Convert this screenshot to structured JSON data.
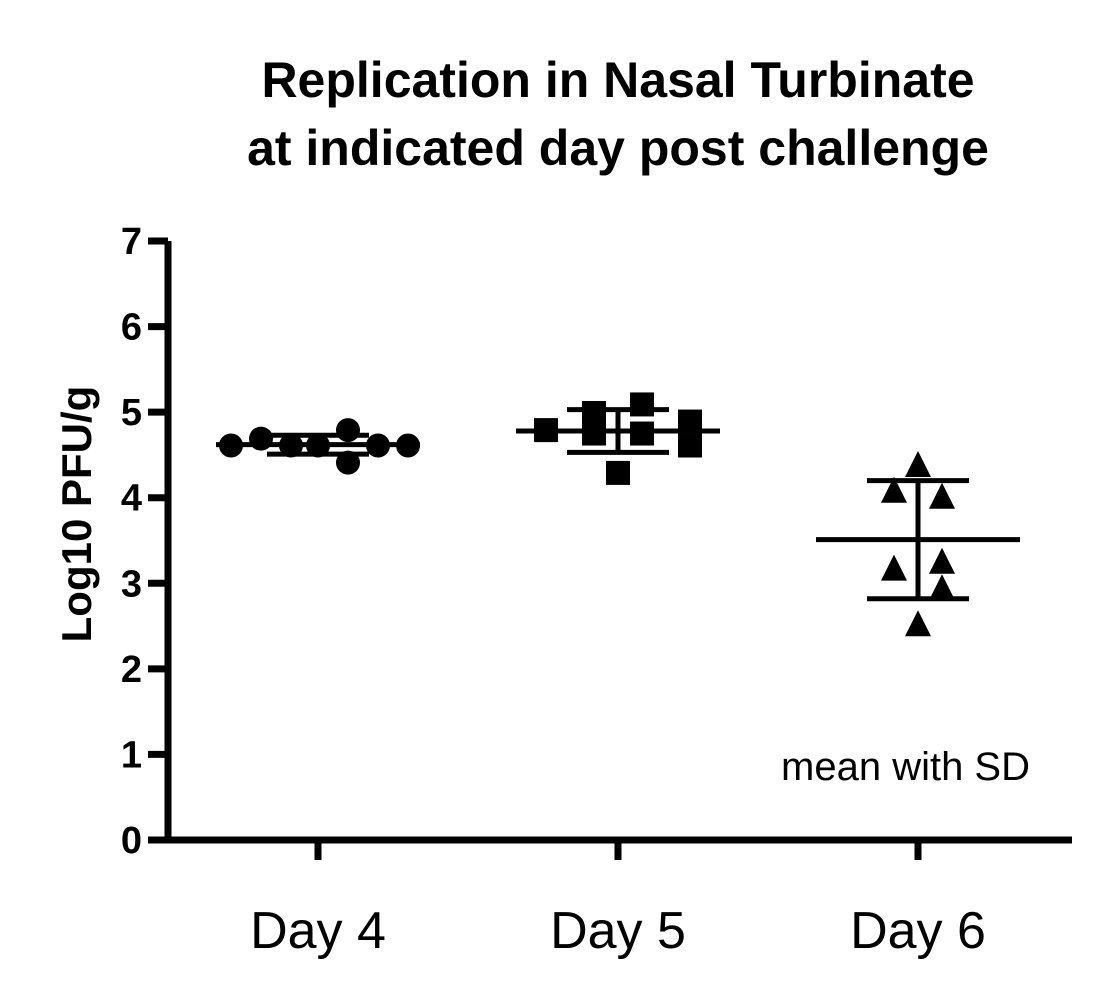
{
  "chart_data": {
    "type": "scatter",
    "title_lines": [
      "Replication in Nasal Turbinate",
      "at indicated day post challenge"
    ],
    "ylabel": "Log10 PFU/g",
    "ylim": [
      0,
      7
    ],
    "yticks": [
      "0",
      "1",
      "2",
      "3",
      "4",
      "5",
      "6",
      "7"
    ],
    "categories": [
      "Day 4",
      "Day 5",
      "Day 6"
    ],
    "annotation": "mean with SD",
    "grid": false,
    "color": "#000000",
    "series": [
      {
        "category": "Day 4",
        "marker": "circle",
        "points": [
          {
            "offset": -0.29,
            "y": 4.61
          },
          {
            "offset": -0.19,
            "y": 4.69
          },
          {
            "offset": -0.09,
            "y": 4.61
          },
          {
            "offset": 0.0,
            "y": 4.61
          },
          {
            "offset": 0.1,
            "y": 4.41
          },
          {
            "offset": 0.1,
            "y": 4.79
          },
          {
            "offset": 0.2,
            "y": 4.61
          },
          {
            "offset": 0.3,
            "y": 4.61
          }
        ],
        "mean": 4.62,
        "sd": 0.11
      },
      {
        "category": "Day 5",
        "marker": "square",
        "points": [
          {
            "offset": -0.24,
            "y": 4.79
          },
          {
            "offset": -0.08,
            "y": 4.99
          },
          {
            "offset": -0.08,
            "y": 4.75
          },
          {
            "offset": 0.0,
            "y": 4.29
          },
          {
            "offset": 0.08,
            "y": 5.09
          },
          {
            "offset": 0.08,
            "y": 4.75
          },
          {
            "offset": 0.24,
            "y": 4.89
          },
          {
            "offset": 0.24,
            "y": 4.61
          }
        ],
        "mean": 4.78,
        "sd": 0.25
      },
      {
        "category": "Day 6",
        "marker": "triangle",
        "points": [
          {
            "offset": 0.0,
            "y": 4.37
          },
          {
            "offset": -0.08,
            "y": 4.07
          },
          {
            "offset": 0.08,
            "y": 4.0
          },
          {
            "offset": -0.08,
            "y": 3.16
          },
          {
            "offset": 0.08,
            "y": 3.24
          },
          {
            "offset": 0.08,
            "y": 2.93
          },
          {
            "offset": 0.0,
            "y": 2.51
          }
        ],
        "mean": 3.51,
        "sd": 0.69
      }
    ]
  }
}
